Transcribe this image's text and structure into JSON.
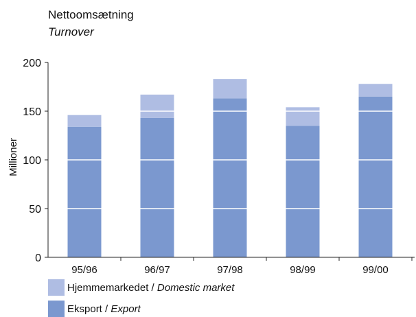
{
  "chart_data": {
    "type": "bar",
    "stacked": true,
    "title": "Nettoomsætning",
    "subtitle": "Turnover",
    "xlabel": "",
    "ylabel": "Millioner",
    "ylim": [
      0,
      200
    ],
    "yticks": [
      "0",
      "50",
      "100",
      "150",
      "200"
    ],
    "ytick_values": [
      0,
      50,
      100,
      150,
      200
    ],
    "categories": [
      "95/96",
      "96/97",
      "97/98",
      "98/99",
      "99/00"
    ],
    "series": [
      {
        "name": "Eksport / Export",
        "values": [
          134,
          143,
          163,
          135,
          165
        ],
        "color": "#7b98cf"
      },
      {
        "name": "Hjemmemarkedet / Domestic market",
        "values": [
          12,
          24,
          20,
          19,
          13
        ],
        "color": "#afbde3"
      }
    ],
    "grid": "horizontal white lines over bars",
    "legend_position": "bottom-left"
  },
  "legend": {
    "domestic_main": "Hjemmemarkedet",
    "domestic_sep": " / ",
    "domestic_italic": "Domestic market",
    "export_main": "Eksport",
    "export_sep": " / ",
    "export_italic": "Export"
  }
}
